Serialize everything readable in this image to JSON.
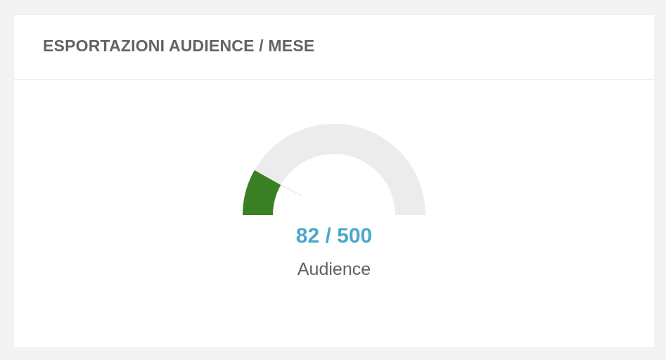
{
  "card": {
    "title": "ESPORTAZIONI AUDIENCE / MESE"
  },
  "gauge": {
    "current": 82,
    "max": 500,
    "value_text": "82 / 500",
    "label": "Audience",
    "fill_color": "#3a7f24",
    "track_color": "#ececec",
    "value_color": "#4aa8cc"
  }
}
